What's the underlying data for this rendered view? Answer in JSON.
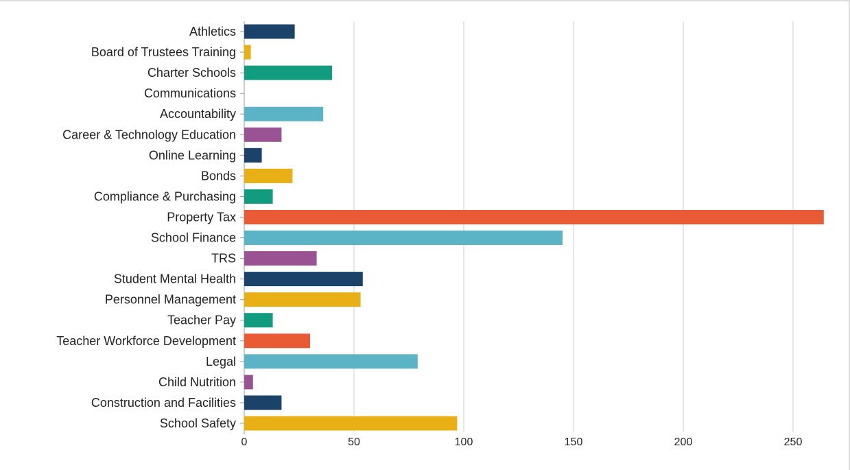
{
  "chart_data": {
    "type": "bar",
    "orientation": "horizontal",
    "title": "",
    "xlabel": "",
    "ylabel": "",
    "xlim": [
      0,
      265
    ],
    "x_ticks": [
      0,
      50,
      100,
      150,
      200,
      250
    ],
    "grid": true,
    "categories": [
      "Athletics",
      "Board of Trustees Training",
      "Charter Schools",
      "Communications",
      "Accountability",
      "Career & Technology Education",
      "Online Learning",
      "Bonds",
      "Compliance & Purchasing",
      "Property Tax",
      "School Finance",
      "TRS",
      "Student Mental Health",
      "Personnel Management",
      "Teacher Pay",
      "Teacher Workforce Development",
      "Legal",
      "Child Nutrition",
      "Construction and Facilities",
      "School Safety"
    ],
    "values": [
      23,
      3,
      40,
      0,
      36,
      17,
      8,
      22,
      13,
      264,
      145,
      33,
      54,
      53,
      13,
      30,
      79,
      4,
      17,
      97
    ],
    "colors": [
      "#1b4369",
      "#e8b015",
      "#119b7f",
      "#e85b35",
      "#5bb4c6",
      "#9a5392",
      "#1b4369",
      "#e8b015",
      "#119b7f",
      "#e85b35",
      "#5bb4c6",
      "#9a5392",
      "#1b4369",
      "#e8b015",
      "#119b7f",
      "#e85b35",
      "#5bb4c6",
      "#9a5392",
      "#1b4369",
      "#e8b015"
    ]
  }
}
